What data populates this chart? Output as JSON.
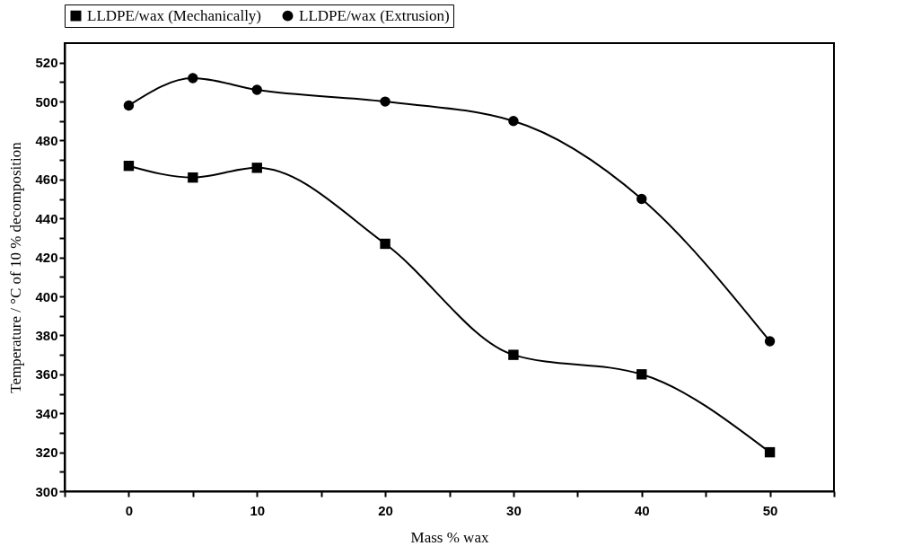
{
  "chart_data": {
    "type": "line",
    "xlabel": "Mass % wax",
    "ylabel": "Temperature / °C of 10 % decomposition",
    "x": [
      0,
      5,
      10,
      20,
      30,
      40,
      50
    ],
    "series": [
      {
        "name": "LLDPE/wax (Mechanically)",
        "color": "#000000",
        "marker": "square",
        "values": [
          467,
          461,
          466,
          427,
          370,
          360,
          320
        ]
      },
      {
        "name": "LLDPE/wax (Extrusion)",
        "color": "#000000",
        "marker": "circle",
        "values": [
          498,
          512,
          506,
          500,
          490,
          450,
          377
        ]
      }
    ],
    "xlim": [
      -5,
      55
    ],
    "xticks": [
      {
        "value": -5,
        "label": null
      },
      0,
      {
        "value": 5,
        "label": null
      },
      10,
      {
        "value": 15,
        "label": null
      },
      20,
      {
        "value": 25,
        "label": null
      },
      30,
      {
        "value": 35,
        "label": null
      },
      40,
      {
        "value": 45,
        "label": null
      },
      50,
      {
        "value": 55,
        "label": null
      }
    ],
    "ylim": [
      300,
      530
    ],
    "yticks": [
      300,
      {
        "value": 310,
        "label": null
      },
      320,
      {
        "value": 330,
        "label": null
      },
      340,
      {
        "value": 350,
        "label": null
      },
      360,
      {
        "value": 370,
        "label": null
      },
      380,
      {
        "value": 390,
        "label": null
      },
      400,
      {
        "value": 410,
        "label": null
      },
      420,
      {
        "value": 430,
        "label": null
      },
      440,
      {
        "value": 450,
        "label": null
      },
      460,
      {
        "value": 470,
        "label": null
      },
      480,
      {
        "value": 490,
        "label": null
      },
      500,
      {
        "value": 510,
        "label": null
      },
      520
    ],
    "grid": false,
    "legend": "top",
    "line_style": "solid"
  }
}
